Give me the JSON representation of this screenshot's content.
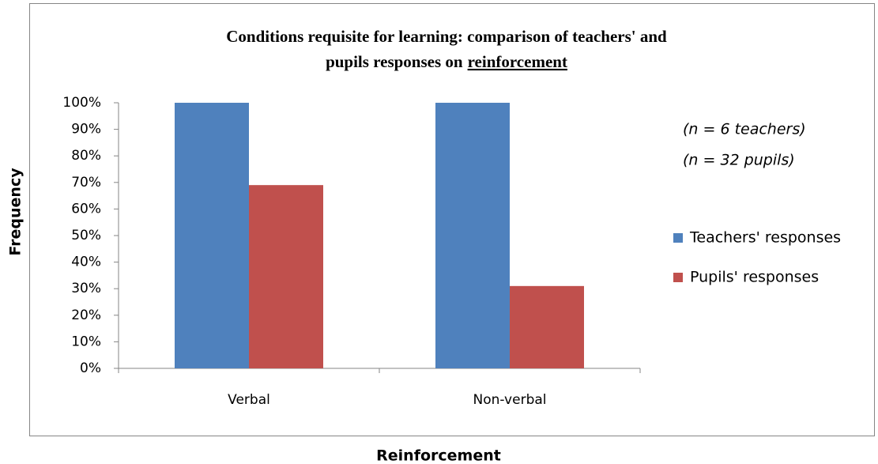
{
  "chart_data": {
    "type": "bar",
    "title": [
      "Conditions requisite for learning: comparison of teachers' and",
      "pupils responses on",
      "reinforcement"
    ],
    "x_label": "Reinforcement",
    "y_label": "Frequency",
    "annotations": [
      "(n = 6 teachers)",
      "(n =  32 pupils)"
    ],
    "categories": [
      "Verbal",
      "Non-verbal"
    ],
    "series": [
      {
        "name": "Teachers' responses",
        "color": "#4f81bd",
        "values": [
          100,
          100
        ]
      },
      {
        "name": "Pupils' responses",
        "color": "#c0504d",
        "values": [
          69,
          31
        ]
      }
    ],
    "ylim": [
      0,
      100
    ],
    "yticks": [
      {
        "value": 0,
        "label": "0%"
      },
      {
        "value": 10,
        "label": "10%"
      },
      {
        "value": 20,
        "label": "20%"
      },
      {
        "value": 30,
        "label": "30%"
      },
      {
        "value": 40,
        "label": "40%"
      },
      {
        "value": 50,
        "label": "50%"
      },
      {
        "value": 60,
        "label": "60%"
      },
      {
        "value": 70,
        "label": "70%"
      },
      {
        "value": 80,
        "label": "80%"
      },
      {
        "value": 90,
        "label": "90%"
      },
      {
        "value": 100,
        "label": "100%"
      }
    ],
    "grid": false,
    "legend": "right"
  }
}
